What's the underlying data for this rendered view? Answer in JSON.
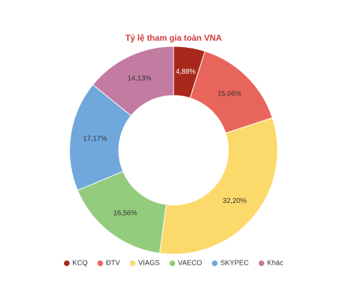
{
  "chart_data": {
    "type": "donut",
    "title": "Tỷ lệ tham gia toàn VNA",
    "categories": [
      "KCQ",
      "ĐTV",
      "VIAGS",
      "VAECO",
      "SKYPEC",
      "Khác"
    ],
    "values": [
      4.88,
      15.06,
      32.2,
      16.56,
      17.17,
      14.13
    ],
    "value_labels": [
      "4,88%",
      "15,06%",
      "32,20%",
      "16,56%",
      "17,17%",
      "14,13%"
    ],
    "colors": [
      "#a8291c",
      "#e8655c",
      "#fcd96b",
      "#92cc7c",
      "#70a8dc",
      "#c47ba2"
    ],
    "legend": "bottom"
  }
}
